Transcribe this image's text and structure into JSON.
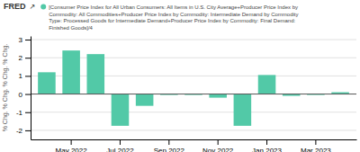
{
  "chart_data": {
    "type": "bar",
    "annotations": [
      "FRED",
      "↗"
    ],
    "ylabel": "% Chg. % Chg. % Chg. % Chg.",
    "categories": [
      null,
      "May 2022",
      null,
      "Jul 2022",
      null,
      "Sep 2022",
      null,
      "Nov 2022",
      null,
      "Jan 2023",
      null,
      "Mar 2023",
      null
    ],
    "series": [
      {
        "name": "[Consumer Price Index for All Urban Consumers: All Items in U.S. City Average+Producer Price Index by\nCommodity: All Commodities+Producer Price Index by Commodity: Intermediate Demand by Commodity\nType: Processed Goods for Intermediate Demand+Producer Price Index by Commodity: Final Demand:\nFinished Goods]/4",
        "color": "#52c9a7",
        "values": [
          1.2,
          2.4,
          2.2,
          -1.75,
          -0.65,
          -0.05,
          -0.05,
          -0.2,
          -1.75,
          1.05,
          -0.1,
          -0.05,
          0.1
        ]
      }
    ],
    "ylim": [
      -2.5,
      3.2
    ],
    "yticks": [
      -2,
      -1,
      0,
      1,
      2,
      3
    ],
    "grid": true,
    "legend": "top-left"
  }
}
